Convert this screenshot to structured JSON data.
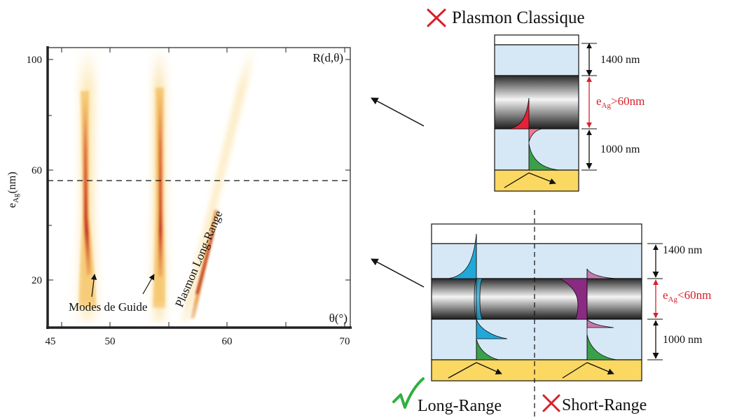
{
  "plot": {
    "corner_label": "R(d,θ)",
    "x_axis_label": "θ(°)",
    "y_axis_label_main": "e",
    "y_axis_label_sub": "Ag",
    "y_axis_label_unit": "(nm)",
    "x_ticks": [
      "45",
      "50",
      "60",
      "70"
    ],
    "y_ticks": [
      "100",
      "60",
      "20"
    ],
    "label_modes": "Modes de Guide",
    "label_plasmon": "Plasmon Long-Range"
  },
  "top_structure": {
    "title": "Plasmon Classique",
    "dim_top": "1400 nm",
    "dim_mid_main": "e",
    "dim_mid_sub": "Ag",
    "dim_mid_rest": ">60nm",
    "dim_bottom": "1000 nm",
    "title_mark": "cross-icon"
  },
  "bottom_structure": {
    "dim_top": "1400 nm",
    "dim_mid_main": "e",
    "dim_mid_sub": "Ag",
    "dim_mid_rest": "<60nm",
    "dim_bottom": "1000 nm",
    "label_left": "Long-Range",
    "label_right": "Short-Range",
    "left_mark": "check-icon",
    "right_mark": "cross-icon"
  },
  "colors": {
    "layer_blue": "#d6e8f5",
    "substrate": "#fbd862",
    "accent_red": "#d8202a",
    "mode_red": "#e8203a",
    "mode_pink": "#f07890",
    "mode_green": "#3aa04a",
    "mode_cyan": "#20a8d8",
    "mode_purple": "#8a2a80",
    "mode_mauve": "#c878b0",
    "check_green": "#30b040"
  }
}
